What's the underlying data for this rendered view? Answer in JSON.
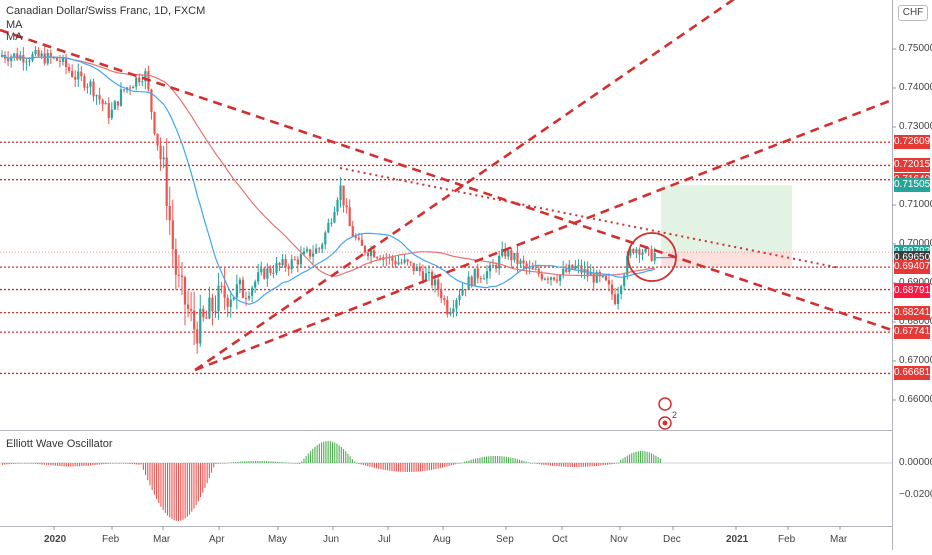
{
  "header": {
    "symbol_title": "Canadian Dollar/Swiss Franc, 1D, FXCM",
    "ma1_label": "MA",
    "ma2_label": "MA",
    "currency": "CHF",
    "oscillator_title": "Elliott Wave Oscillator"
  },
  "price_axis": {
    "ticks": [
      "0.75000",
      "0.74000",
      "0.73000",
      "0.71000",
      "0.70000",
      "0.69000",
      "0.68000",
      "0.67000",
      "0.66000"
    ],
    "tick_values": [
      0.75,
      0.74,
      0.73,
      0.71,
      0.7,
      0.69,
      0.68,
      0.67,
      0.66
    ]
  },
  "osc_axis": {
    "ticks": [
      "0.00000",
      "−0.02000"
    ]
  },
  "price_labels": [
    {
      "text": "0.72609",
      "value": 0.72609,
      "color": "#e53935"
    },
    {
      "text": "0.72015",
      "value": 0.72015,
      "color": "#e53935"
    },
    {
      "text": "0.71649",
      "value": 0.71649,
      "color": "#e53935"
    },
    {
      "text": "0.71505",
      "value": 0.71505,
      "color": "#26a69a"
    },
    {
      "text": "0.69792",
      "value": 0.69792,
      "color": "#26a69a"
    },
    {
      "text": "22:06:08",
      "value": 0.69612,
      "color": "#26a69a"
    },
    {
      "text": "0.69650",
      "value": 0.6965,
      "color": "#3d3d3d"
    },
    {
      "text": "0.69407",
      "value": 0.69407,
      "color": "#e53935"
    },
    {
      "text": "0.68832",
      "value": 0.68832,
      "color": "#e53935"
    },
    {
      "text": "0.68791",
      "value": 0.68791,
      "color": "#ff1744"
    },
    {
      "text": "0.68241",
      "value": 0.68241,
      "color": "#e53935"
    },
    {
      "text": "0.67741",
      "value": 0.67741,
      "color": "#e53935"
    },
    {
      "text": "0.66681",
      "value": 0.66681,
      "color": "#e53935"
    }
  ],
  "time_axis": {
    "labels": [
      {
        "text": "2020",
        "bold": true
      },
      {
        "text": "Feb",
        "bold": false
      },
      {
        "text": "Mar",
        "bold": false
      },
      {
        "text": "Apr",
        "bold": false
      },
      {
        "text": "May",
        "bold": false
      },
      {
        "text": "Jun",
        "bold": false
      },
      {
        "text": "Jul",
        "bold": false
      },
      {
        "text": "Aug",
        "bold": false
      },
      {
        "text": "Sep",
        "bold": false
      },
      {
        "text": "Oct",
        "bold": false
      },
      {
        "text": "Nov",
        "bold": false
      },
      {
        "text": "Dec",
        "bold": false
      },
      {
        "text": "2021",
        "bold": true
      },
      {
        "text": "Feb",
        "bold": false
      },
      {
        "text": "Mar",
        "bold": false
      }
    ]
  },
  "colors": {
    "up": "#26a69a",
    "down": "#ef5350",
    "trend": "#d32f2f",
    "ma_fast": "#42a5f5",
    "ma_slow": "#e57373"
  },
  "event_marker_count": "2",
  "chart_data": {
    "type": "candlestick",
    "title": "Canadian Dollar/Swiss Franc, 1D, FXCM",
    "ylim": [
      0.653,
      0.7608
    ],
    "horizontal_levels": [
      0.72609,
      0.72015,
      0.71649,
      0.69407,
      0.68832,
      0.68241,
      0.67741,
      0.66681
    ],
    "trade_box": {
      "entry": 0.69792,
      "target": 0.71505,
      "stop": 0.69407
    },
    "ma_current": 0.6965,
    "last_price": 0.69792
  }
}
